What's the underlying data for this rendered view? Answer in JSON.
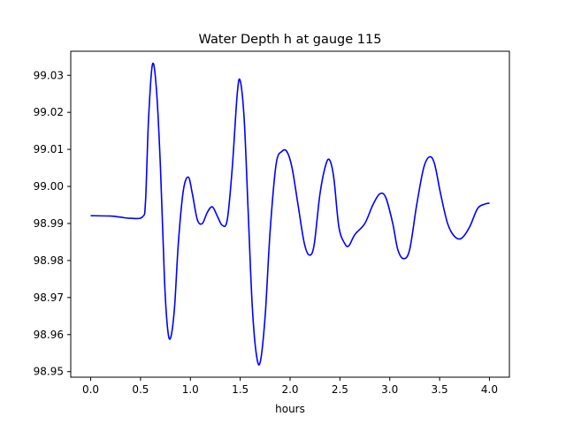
{
  "chart_data": {
    "type": "line",
    "title": "Water Depth h at gauge 115",
    "xlabel": "hours",
    "ylabel": "",
    "xlim": [
      -0.2,
      4.2
    ],
    "ylim": [
      98.9485,
      99.0365
    ],
    "xticks": [
      0.0,
      0.5,
      1.0,
      1.5,
      2.0,
      2.5,
      3.0,
      3.5,
      4.0
    ],
    "xtick_labels": [
      "0.0",
      "0.5",
      "1.0",
      "1.5",
      "2.0",
      "2.5",
      "3.0",
      "3.5",
      "4.0"
    ],
    "yticks": [
      98.95,
      98.96,
      98.97,
      98.98,
      98.99,
      99.0,
      99.01,
      99.02,
      99.03
    ],
    "ytick_labels": [
      "98.95",
      "98.96",
      "98.97",
      "98.98",
      "98.99",
      "99.00",
      "99.01",
      "99.02",
      "99.03"
    ],
    "grid": false,
    "line_color": "#0000ff",
    "series": [
      {
        "points": [
          [
            0.0,
            98.9921
          ],
          [
            0.2,
            98.992
          ],
          [
            0.3,
            98.9917
          ],
          [
            0.4,
            98.9914
          ],
          [
            0.52,
            98.9918
          ],
          [
            0.55,
            98.996
          ],
          [
            0.58,
            99.018
          ],
          [
            0.62,
            99.033
          ],
          [
            0.66,
            99.026
          ],
          [
            0.7,
            99.005
          ],
          [
            0.74,
            98.975
          ],
          [
            0.77,
            98.962
          ],
          [
            0.8,
            98.959
          ],
          [
            0.84,
            98.967
          ],
          [
            0.88,
            98.985
          ],
          [
            0.93,
            98.999
          ],
          [
            0.98,
            99.0025
          ],
          [
            1.02,
            98.998
          ],
          [
            1.07,
            98.991
          ],
          [
            1.12,
            98.99
          ],
          [
            1.17,
            98.993
          ],
          [
            1.22,
            98.9945
          ],
          [
            1.27,
            98.992
          ],
          [
            1.32,
            98.9895
          ],
          [
            1.37,
            98.991
          ],
          [
            1.42,
            99.005
          ],
          [
            1.47,
            99.025
          ],
          [
            1.5,
            99.0285
          ],
          [
            1.54,
            99.018
          ],
          [
            1.58,
            98.993
          ],
          [
            1.62,
            98.968
          ],
          [
            1.66,
            98.955
          ],
          [
            1.7,
            98.9525
          ],
          [
            1.75,
            98.965
          ],
          [
            1.8,
            98.988
          ],
          [
            1.86,
            99.006
          ],
          [
            1.92,
            99.0095
          ],
          [
            1.97,
            99.0093
          ],
          [
            2.02,
            99.005
          ],
          [
            2.08,
            98.995
          ],
          [
            2.14,
            98.985
          ],
          [
            2.19,
            98.9815
          ],
          [
            2.24,
            98.984
          ],
          [
            2.3,
            98.998
          ],
          [
            2.36,
            99.006
          ],
          [
            2.4,
            99.007
          ],
          [
            2.44,
            99.002
          ],
          [
            2.49,
            98.989
          ],
          [
            2.55,
            98.9845
          ],
          [
            2.59,
            98.984
          ],
          [
            2.65,
            98.987
          ],
          [
            2.75,
            98.99
          ],
          [
            2.83,
            98.995
          ],
          [
            2.9,
            98.998
          ],
          [
            2.96,
            98.997
          ],
          [
            3.03,
            98.99
          ],
          [
            3.08,
            98.983
          ],
          [
            3.14,
            98.9805
          ],
          [
            3.2,
            98.983
          ],
          [
            3.27,
            98.995
          ],
          [
            3.34,
            99.005
          ],
          [
            3.4,
            99.008
          ],
          [
            3.45,
            99.006
          ],
          [
            3.51,
            98.998
          ],
          [
            3.58,
            98.99
          ],
          [
            3.65,
            98.9865
          ],
          [
            3.72,
            98.986
          ],
          [
            3.8,
            98.989
          ],
          [
            3.88,
            98.994
          ],
          [
            3.95,
            98.9952
          ],
          [
            4.0,
            98.9955
          ]
        ]
      }
    ]
  }
}
